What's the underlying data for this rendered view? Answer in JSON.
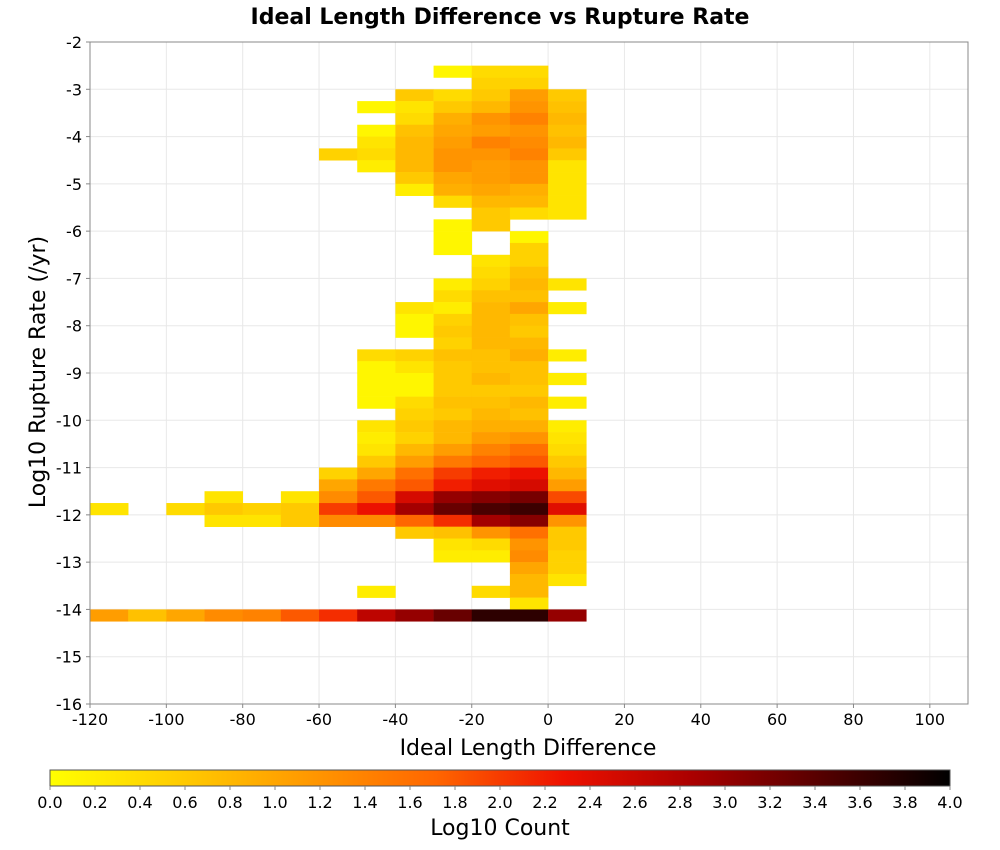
{
  "chart_data": {
    "type": "heatmap",
    "title": "Ideal Length Difference vs Rupture Rate",
    "xlabel": "Ideal Length Difference",
    "ylabel": "Log10 Rupture Rate (/yr)",
    "xlim": [
      -120,
      110
    ],
    "ylim": [
      -16,
      -2
    ],
    "x_ticks": [
      -120,
      -100,
      -80,
      -60,
      -40,
      -20,
      0,
      20,
      40,
      60,
      80,
      100
    ],
    "y_ticks": [
      -2,
      -3,
      -4,
      -5,
      -6,
      -7,
      -8,
      -9,
      -10,
      -11,
      -12,
      -13,
      -14,
      -15,
      -16
    ],
    "x_bin_width": 10,
    "y_bin_height": 0.25,
    "grid": true,
    "colorbar": {
      "label": "Log10 Count",
      "min": 0.0,
      "max": 4.0,
      "ticks": [
        "0.0",
        "0.2",
        "0.4",
        "0.6",
        "0.8",
        "1.0",
        "1.2",
        "1.4",
        "1.6",
        "1.8",
        "2.0",
        "2.2",
        "2.4",
        "2.6",
        "2.8",
        "3.0",
        "3.2",
        "3.4",
        "3.6",
        "3.8",
        "4.0"
      ],
      "placement": "bottom",
      "colors": [
        "#ffff00",
        "#ffcc00",
        "#ff9900",
        "#ff6600",
        "#ee1100",
        "#aa0000",
        "#550000",
        "#000000"
      ]
    },
    "cells": [
      {
        "x": -30,
        "y": -2.5,
        "v": 0.1
      },
      {
        "x": -20,
        "y": -2.75,
        "v": 0.5
      },
      {
        "x": -20,
        "y": -2.5,
        "v": 0.4
      },
      {
        "x": -10,
        "y": -2.75,
        "v": 0.5
      },
      {
        "x": -10,
        "y": -2.5,
        "v": 0.4
      },
      {
        "x": -40,
        "y": -3.0,
        "v": 0.6
      },
      {
        "x": -30,
        "y": -3.0,
        "v": 0.4
      },
      {
        "x": -20,
        "y": -3.0,
        "v": 0.6
      },
      {
        "x": -10,
        "y": -3.0,
        "v": 1.1
      },
      {
        "x": 0,
        "y": -3.0,
        "v": 0.6
      },
      {
        "x": -50,
        "y": -3.25,
        "v": 0.1
      },
      {
        "x": -40,
        "y": -3.25,
        "v": 0.3
      },
      {
        "x": -30,
        "y": -3.25,
        "v": 0.6
      },
      {
        "x": -20,
        "y": -3.25,
        "v": 0.8
      },
      {
        "x": -10,
        "y": -3.25,
        "v": 1.2
      },
      {
        "x": 0,
        "y": -3.25,
        "v": 0.7
      },
      {
        "x": -40,
        "y": -3.5,
        "v": 0.4
      },
      {
        "x": -30,
        "y": -3.5,
        "v": 0.9
      },
      {
        "x": -20,
        "y": -3.5,
        "v": 1.2
      },
      {
        "x": -10,
        "y": -3.5,
        "v": 1.4
      },
      {
        "x": 0,
        "y": -3.5,
        "v": 0.8
      },
      {
        "x": -50,
        "y": -3.75,
        "v": 0.1
      },
      {
        "x": -40,
        "y": -3.75,
        "v": 0.7
      },
      {
        "x": -30,
        "y": -3.75,
        "v": 1.0
      },
      {
        "x": -20,
        "y": -3.75,
        "v": 1.1
      },
      {
        "x": -10,
        "y": -3.75,
        "v": 1.2
      },
      {
        "x": 0,
        "y": -3.75,
        "v": 0.7
      },
      {
        "x": -50,
        "y": -4.0,
        "v": 0.3
      },
      {
        "x": -40,
        "y": -4.0,
        "v": 0.8
      },
      {
        "x": -30,
        "y": -4.0,
        "v": 1.1
      },
      {
        "x": -20,
        "y": -4.0,
        "v": 1.4
      },
      {
        "x": -10,
        "y": -4.0,
        "v": 1.3
      },
      {
        "x": 0,
        "y": -4.0,
        "v": 0.8
      },
      {
        "x": -60,
        "y": -4.25,
        "v": 0.5
      },
      {
        "x": -50,
        "y": -4.25,
        "v": 0.4
      },
      {
        "x": -40,
        "y": -4.25,
        "v": 0.8
      },
      {
        "x": -30,
        "y": -4.25,
        "v": 1.2
      },
      {
        "x": -20,
        "y": -4.25,
        "v": 1.2
      },
      {
        "x": -10,
        "y": -4.25,
        "v": 1.4
      },
      {
        "x": 0,
        "y": -4.25,
        "v": 0.6
      },
      {
        "x": -50,
        "y": -4.5,
        "v": 0.2
      },
      {
        "x": -40,
        "y": -4.5,
        "v": 0.8
      },
      {
        "x": -30,
        "y": -4.5,
        "v": 1.2
      },
      {
        "x": -20,
        "y": -4.5,
        "v": 1.1
      },
      {
        "x": -10,
        "y": -4.5,
        "v": 1.2
      },
      {
        "x": 0,
        "y": -4.5,
        "v": 0.3
      },
      {
        "x": -40,
        "y": -4.75,
        "v": 0.6
      },
      {
        "x": -30,
        "y": -4.75,
        "v": 1.0
      },
      {
        "x": -20,
        "y": -4.75,
        "v": 1.1
      },
      {
        "x": -10,
        "y": -4.75,
        "v": 1.2
      },
      {
        "x": 0,
        "y": -4.75,
        "v": 0.3
      },
      {
        "x": -40,
        "y": -5.0,
        "v": 0.2
      },
      {
        "x": -30,
        "y": -5.0,
        "v": 0.9
      },
      {
        "x": -20,
        "y": -5.0,
        "v": 1.0
      },
      {
        "x": -10,
        "y": -5.0,
        "v": 0.9
      },
      {
        "x": 0,
        "y": -5.0,
        "v": 0.3
      },
      {
        "x": -30,
        "y": -5.25,
        "v": 0.4
      },
      {
        "x": -20,
        "y": -5.25,
        "v": 0.8
      },
      {
        "x": -10,
        "y": -5.25,
        "v": 0.8
      },
      {
        "x": 0,
        "y": -5.25,
        "v": 0.3
      },
      {
        "x": -20,
        "y": -5.5,
        "v": 0.6
      },
      {
        "x": -10,
        "y": -5.5,
        "v": 0.4
      },
      {
        "x": 0,
        "y": -5.5,
        "v": 0.3
      },
      {
        "x": -30,
        "y": -5.75,
        "v": 0.1
      },
      {
        "x": -20,
        "y": -5.75,
        "v": 0.6
      },
      {
        "x": -30,
        "y": -6.0,
        "v": 0.1
      },
      {
        "x": -10,
        "y": -6.0,
        "v": 0.1
      },
      {
        "x": -30,
        "y": -6.25,
        "v": 0.1
      },
      {
        "x": -10,
        "y": -6.25,
        "v": 0.5
      },
      {
        "x": -20,
        "y": -6.5,
        "v": 0.3
      },
      {
        "x": -10,
        "y": -6.5,
        "v": 0.5
      },
      {
        "x": -20,
        "y": -6.75,
        "v": 0.4
      },
      {
        "x": -10,
        "y": -6.75,
        "v": 0.7
      },
      {
        "x": -30,
        "y": -7.0,
        "v": 0.2
      },
      {
        "x": -20,
        "y": -7.0,
        "v": 0.5
      },
      {
        "x": -10,
        "y": -7.0,
        "v": 0.8
      },
      {
        "x": 0,
        "y": -7.0,
        "v": 0.3
      },
      {
        "x": -30,
        "y": -7.25,
        "v": 0.4
      },
      {
        "x": -20,
        "y": -7.25,
        "v": 0.7
      },
      {
        "x": -10,
        "y": -7.25,
        "v": 0.7
      },
      {
        "x": -40,
        "y": -7.5,
        "v": 0.3
      },
      {
        "x": -30,
        "y": -7.5,
        "v": 0.2
      },
      {
        "x": -20,
        "y": -7.5,
        "v": 0.8
      },
      {
        "x": -10,
        "y": -7.5,
        "v": 1.0
      },
      {
        "x": 0,
        "y": -7.5,
        "v": 0.2
      },
      {
        "x": -40,
        "y": -7.75,
        "v": 0.1
      },
      {
        "x": -30,
        "y": -7.75,
        "v": 0.5
      },
      {
        "x": -20,
        "y": -7.75,
        "v": 0.8
      },
      {
        "x": -10,
        "y": -7.75,
        "v": 0.7
      },
      {
        "x": -40,
        "y": -8.0,
        "v": 0.1
      },
      {
        "x": -30,
        "y": -8.0,
        "v": 0.6
      },
      {
        "x": -20,
        "y": -8.0,
        "v": 0.8
      },
      {
        "x": -10,
        "y": -8.0,
        "v": 0.6
      },
      {
        "x": -30,
        "y": -8.25,
        "v": 0.5
      },
      {
        "x": -20,
        "y": -8.25,
        "v": 0.8
      },
      {
        "x": -10,
        "y": -8.25,
        "v": 0.8
      },
      {
        "x": -50,
        "y": -8.5,
        "v": 0.4
      },
      {
        "x": -40,
        "y": -8.5,
        "v": 0.5
      },
      {
        "x": -30,
        "y": -8.5,
        "v": 0.7
      },
      {
        "x": -20,
        "y": -8.5,
        "v": 0.7
      },
      {
        "x": -10,
        "y": -8.5,
        "v": 0.9
      },
      {
        "x": 0,
        "y": -8.5,
        "v": 0.2
      },
      {
        "x": -50,
        "y": -8.75,
        "v": 0.1
      },
      {
        "x": -40,
        "y": -8.75,
        "v": 0.3
      },
      {
        "x": -30,
        "y": -8.75,
        "v": 0.6
      },
      {
        "x": -20,
        "y": -8.75,
        "v": 0.7
      },
      {
        "x": -10,
        "y": -8.75,
        "v": 0.7
      },
      {
        "x": -50,
        "y": -9.0,
        "v": 0.1
      },
      {
        "x": -40,
        "y": -9.0,
        "v": 0.1
      },
      {
        "x": -30,
        "y": -9.0,
        "v": 0.6
      },
      {
        "x": -20,
        "y": -9.0,
        "v": 0.8
      },
      {
        "x": -10,
        "y": -9.0,
        "v": 0.7
      },
      {
        "x": 0,
        "y": -9.0,
        "v": 0.2
      },
      {
        "x": -50,
        "y": -9.25,
        "v": 0.1
      },
      {
        "x": -40,
        "y": -9.25,
        "v": 0.1
      },
      {
        "x": -30,
        "y": -9.25,
        "v": 0.6
      },
      {
        "x": -20,
        "y": -9.25,
        "v": 0.6
      },
      {
        "x": -10,
        "y": -9.25,
        "v": 0.6
      },
      {
        "x": -50,
        "y": -9.5,
        "v": 0.1
      },
      {
        "x": -40,
        "y": -9.5,
        "v": 0.4
      },
      {
        "x": -30,
        "y": -9.5,
        "v": 0.7
      },
      {
        "x": -20,
        "y": -9.5,
        "v": 0.7
      },
      {
        "x": -10,
        "y": -9.5,
        "v": 0.8
      },
      {
        "x": 0,
        "y": -9.5,
        "v": 0.2
      },
      {
        "x": -40,
        "y": -9.75,
        "v": 0.5
      },
      {
        "x": -30,
        "y": -9.75,
        "v": 0.6
      },
      {
        "x": -20,
        "y": -9.75,
        "v": 0.8
      },
      {
        "x": -10,
        "y": -9.75,
        "v": 0.7
      },
      {
        "x": -50,
        "y": -10.0,
        "v": 0.3
      },
      {
        "x": -40,
        "y": -10.0,
        "v": 0.6
      },
      {
        "x": -30,
        "y": -10.0,
        "v": 0.8
      },
      {
        "x": -20,
        "y": -10.0,
        "v": 0.9
      },
      {
        "x": -10,
        "y": -10.0,
        "v": 0.9
      },
      {
        "x": 0,
        "y": -10.0,
        "v": 0.2
      },
      {
        "x": -50,
        "y": -10.25,
        "v": 0.2
      },
      {
        "x": -40,
        "y": -10.25,
        "v": 0.5
      },
      {
        "x": -30,
        "y": -10.25,
        "v": 0.8
      },
      {
        "x": -20,
        "y": -10.25,
        "v": 1.1
      },
      {
        "x": -10,
        "y": -10.25,
        "v": 1.2
      },
      {
        "x": 0,
        "y": -10.25,
        "v": 0.3
      },
      {
        "x": -50,
        "y": -10.5,
        "v": 0.3
      },
      {
        "x": -40,
        "y": -10.5,
        "v": 0.8
      },
      {
        "x": -30,
        "y": -10.5,
        "v": 1.1
      },
      {
        "x": -20,
        "y": -10.5,
        "v": 1.4
      },
      {
        "x": -10,
        "y": -10.5,
        "v": 1.6
      },
      {
        "x": 0,
        "y": -10.5,
        "v": 0.4
      },
      {
        "x": -50,
        "y": -10.75,
        "v": 0.6
      },
      {
        "x": -40,
        "y": -10.75,
        "v": 1.1
      },
      {
        "x": -30,
        "y": -10.75,
        "v": 1.5
      },
      {
        "x": -20,
        "y": -10.75,
        "v": 1.7
      },
      {
        "x": -10,
        "y": -10.75,
        "v": 1.8
      },
      {
        "x": 0,
        "y": -10.75,
        "v": 0.6
      },
      {
        "x": -60,
        "y": -11.0,
        "v": 0.5
      },
      {
        "x": -50,
        "y": -11.0,
        "v": 1.0
      },
      {
        "x": -40,
        "y": -11.0,
        "v": 1.6
      },
      {
        "x": -30,
        "y": -11.0,
        "v": 2.0
      },
      {
        "x": -20,
        "y": -11.0,
        "v": 2.2
      },
      {
        "x": -10,
        "y": -11.0,
        "v": 2.3
      },
      {
        "x": 0,
        "y": -11.0,
        "v": 0.8
      },
      {
        "x": -60,
        "y": -11.25,
        "v": 1.0
      },
      {
        "x": -50,
        "y": -11.25,
        "v": 1.5
      },
      {
        "x": -40,
        "y": -11.25,
        "v": 1.8
      },
      {
        "x": -30,
        "y": -11.25,
        "v": 2.2
      },
      {
        "x": -20,
        "y": -11.25,
        "v": 2.4
      },
      {
        "x": -10,
        "y": -11.25,
        "v": 2.5
      },
      {
        "x": 0,
        "y": -11.25,
        "v": 1.1
      },
      {
        "x": -90,
        "y": -11.5,
        "v": 0.3
      },
      {
        "x": -70,
        "y": -11.5,
        "v": 0.3
      },
      {
        "x": -60,
        "y": -11.5,
        "v": 1.3
      },
      {
        "x": -50,
        "y": -11.5,
        "v": 1.8
      },
      {
        "x": -40,
        "y": -11.5,
        "v": 2.5
      },
      {
        "x": -30,
        "y": -11.5,
        "v": 3.0
      },
      {
        "x": -20,
        "y": -11.5,
        "v": 3.1
      },
      {
        "x": -10,
        "y": -11.5,
        "v": 3.2
      },
      {
        "x": 0,
        "y": -11.5,
        "v": 1.9
      },
      {
        "x": -120,
        "y": -11.75,
        "v": 0.3
      },
      {
        "x": -100,
        "y": -11.75,
        "v": 0.4
      },
      {
        "x": -90,
        "y": -11.75,
        "v": 0.6
      },
      {
        "x": -80,
        "y": -11.75,
        "v": 0.5
      },
      {
        "x": -70,
        "y": -11.75,
        "v": 0.6
      },
      {
        "x": -60,
        "y": -11.75,
        "v": 2.0
      },
      {
        "x": -50,
        "y": -11.75,
        "v": 2.3
      },
      {
        "x": -40,
        "y": -11.75,
        "v": 2.9
      },
      {
        "x": -30,
        "y": -11.75,
        "v": 3.3
      },
      {
        "x": -20,
        "y": -11.75,
        "v": 3.5
      },
      {
        "x": -10,
        "y": -11.75,
        "v": 3.6
      },
      {
        "x": 0,
        "y": -11.75,
        "v": 2.4
      },
      {
        "x": -90,
        "y": -12.0,
        "v": 0.3
      },
      {
        "x": -80,
        "y": -12.0,
        "v": 0.3
      },
      {
        "x": -70,
        "y": -12.0,
        "v": 0.6
      },
      {
        "x": -60,
        "y": -12.0,
        "v": 1.3
      },
      {
        "x": -50,
        "y": -12.0,
        "v": 1.3
      },
      {
        "x": -40,
        "y": -12.0,
        "v": 1.7
      },
      {
        "x": -30,
        "y": -12.0,
        "v": 2.1
      },
      {
        "x": -20,
        "y": -12.0,
        "v": 2.9
      },
      {
        "x": -10,
        "y": -12.0,
        "v": 3.1
      },
      {
        "x": 0,
        "y": -12.0,
        "v": 1.2
      },
      {
        "x": -40,
        "y": -12.25,
        "v": 0.6
      },
      {
        "x": -30,
        "y": -12.25,
        "v": 0.7
      },
      {
        "x": -20,
        "y": -12.25,
        "v": 1.2
      },
      {
        "x": -10,
        "y": -12.25,
        "v": 1.6
      },
      {
        "x": 0,
        "y": -12.25,
        "v": 0.6
      },
      {
        "x": -30,
        "y": -12.5,
        "v": 0.3
      },
      {
        "x": -20,
        "y": -12.5,
        "v": 0.4
      },
      {
        "x": -10,
        "y": -12.5,
        "v": 1.2
      },
      {
        "x": 0,
        "y": -12.5,
        "v": 0.6
      },
      {
        "x": -30,
        "y": -12.75,
        "v": 0.2
      },
      {
        "x": -20,
        "y": -12.75,
        "v": 0.2
      },
      {
        "x": -10,
        "y": -12.75,
        "v": 1.3
      },
      {
        "x": 0,
        "y": -12.75,
        "v": 0.5
      },
      {
        "x": -10,
        "y": -13.0,
        "v": 1.0
      },
      {
        "x": 0,
        "y": -13.0,
        "v": 0.5
      },
      {
        "x": -10,
        "y": -13.25,
        "v": 0.8
      },
      {
        "x": 0,
        "y": -13.25,
        "v": 0.3
      },
      {
        "x": -50,
        "y": -13.5,
        "v": 0.2
      },
      {
        "x": -20,
        "y": -13.5,
        "v": 0.4
      },
      {
        "x": -10,
        "y": -13.5,
        "v": 0.8
      },
      {
        "x": -10,
        "y": -13.75,
        "v": 0.3
      },
      {
        "x": -120,
        "y": -14.0,
        "v": 1.1
      },
      {
        "x": -110,
        "y": -14.0,
        "v": 0.7
      },
      {
        "x": -100,
        "y": -14.0,
        "v": 1.0
      },
      {
        "x": -90,
        "y": -14.0,
        "v": 1.3
      },
      {
        "x": -80,
        "y": -14.0,
        "v": 1.4
      },
      {
        "x": -70,
        "y": -14.0,
        "v": 1.8
      },
      {
        "x": -60,
        "y": -14.0,
        "v": 2.1
      },
      {
        "x": -50,
        "y": -14.0,
        "v": 2.7
      },
      {
        "x": -40,
        "y": -14.0,
        "v": 3.0
      },
      {
        "x": -30,
        "y": -14.0,
        "v": 3.3
      },
      {
        "x": -20,
        "y": -14.0,
        "v": 3.7
      },
      {
        "x": -10,
        "y": -14.0,
        "v": 3.7
      },
      {
        "x": 0,
        "y": -14.0,
        "v": 3.0
      }
    ]
  }
}
